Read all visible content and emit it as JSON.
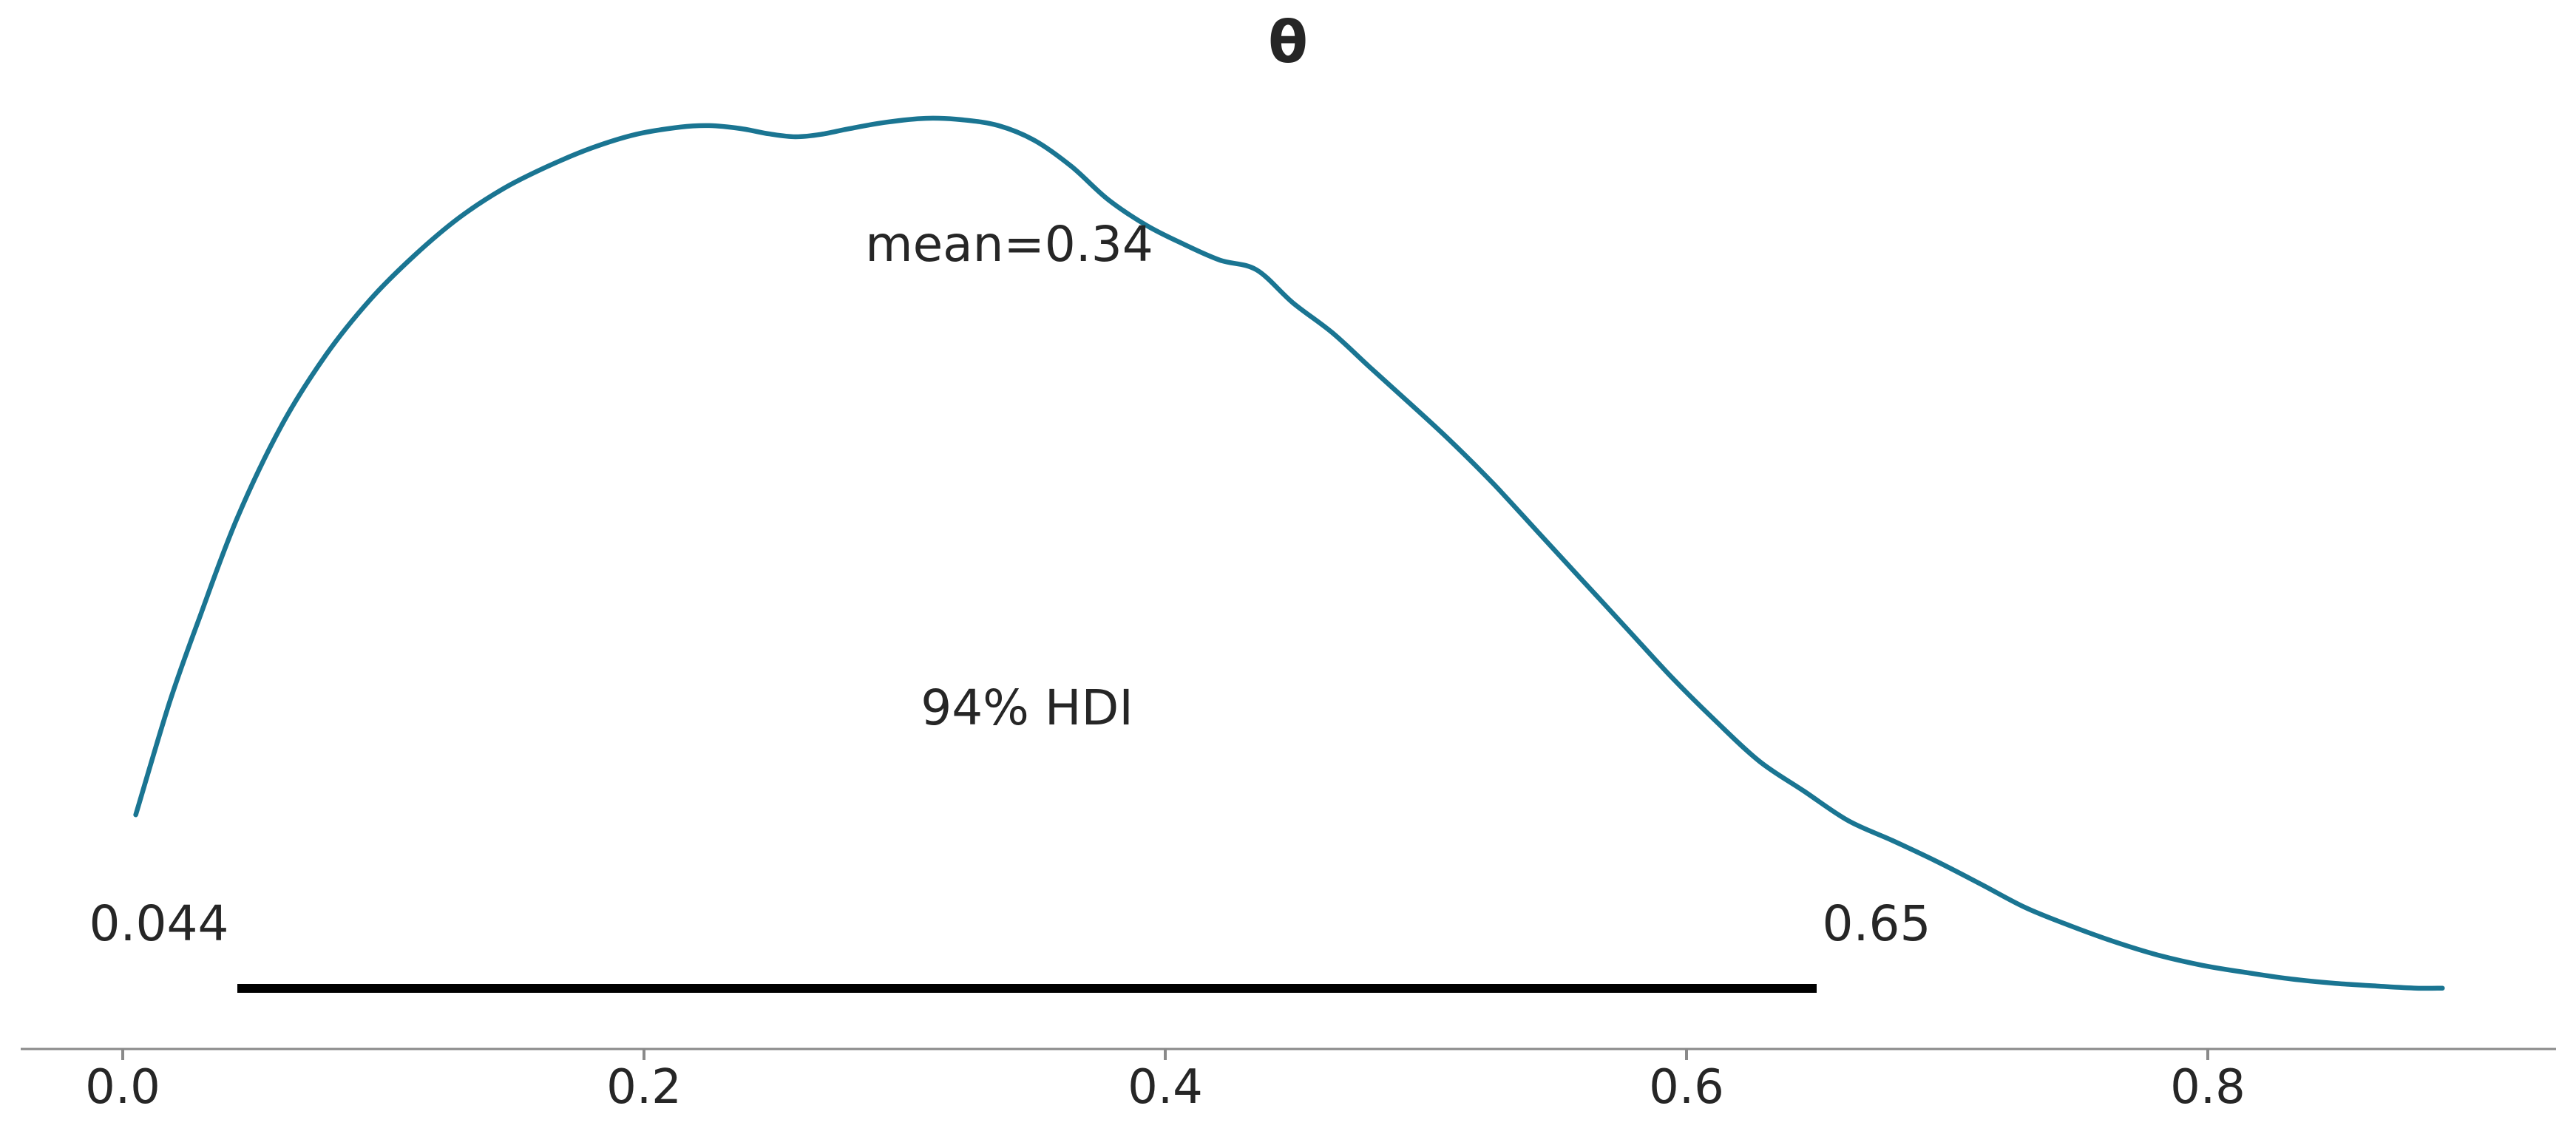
{
  "title": "θ",
  "annotations": {
    "mean_label": "mean=0.34",
    "hdi_label": "94% HDI",
    "hdi_lower_label": "0.044",
    "hdi_upper_label": "0.65"
  },
  "colors": {
    "curve": "#1A7592",
    "hdi_bar": "#000000",
    "axis": "#8A8A8A",
    "text": "#262626",
    "background": "#FFFFFF"
  },
  "chart_data": {
    "type": "line",
    "subtype": "kde-posterior-density",
    "title": "θ",
    "xlabel": "",
    "ylabel": "",
    "legend": "none",
    "grid": false,
    "mean": 0.34,
    "hdi_prob": 0.94,
    "hdi_lower": 0.044,
    "hdi_upper": 0.65,
    "x_ticks": [
      0.0,
      0.2,
      0.4,
      0.6,
      0.8
    ],
    "x_tick_labels": [
      "0.0",
      "0.2",
      "0.4",
      "0.6",
      "0.8"
    ],
    "xlim": [
      -0.039,
      0.934
    ],
    "ylim_density": [
      -0.12,
      2.0
    ],
    "x": [
      0.005,
      0.018,
      0.03,
      0.044,
      0.061,
      0.078,
      0.095,
      0.112,
      0.129,
      0.146,
      0.163,
      0.18,
      0.197,
      0.214,
      0.225,
      0.237,
      0.248,
      0.258,
      0.268,
      0.279,
      0.293,
      0.308,
      0.322,
      0.336,
      0.35,
      0.364,
      0.378,
      0.393,
      0.407,
      0.421,
      0.435,
      0.449,
      0.464,
      0.478,
      0.492,
      0.509,
      0.526,
      0.543,
      0.56,
      0.577,
      0.594,
      0.611,
      0.628,
      0.645,
      0.662,
      0.679,
      0.696,
      0.713,
      0.73,
      0.747,
      0.764,
      0.781,
      0.798,
      0.815,
      0.832,
      0.849,
      0.866,
      0.88,
      0.89
    ],
    "density": [
      0.365,
      0.597,
      0.779,
      0.977,
      1.167,
      1.312,
      1.426,
      1.517,
      1.594,
      1.654,
      1.7,
      1.738,
      1.766,
      1.781,
      1.784,
      1.778,
      1.767,
      1.761,
      1.766,
      1.778,
      1.791,
      1.799,
      1.796,
      1.784,
      1.753,
      1.7,
      1.632,
      1.578,
      1.54,
      1.507,
      1.487,
      1.419,
      1.358,
      1.289,
      1.221,
      1.137,
      1.046,
      0.947,
      0.848,
      0.749,
      0.65,
      0.559,
      0.475,
      0.414,
      0.353,
      0.312,
      0.269,
      0.222,
      0.174,
      0.137,
      0.104,
      0.076,
      0.055,
      0.04,
      0.027,
      0.018,
      0.012,
      0.008,
      0.008
    ]
  }
}
